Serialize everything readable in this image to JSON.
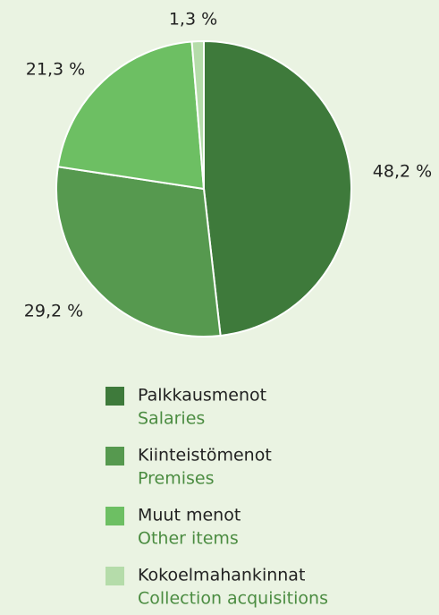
{
  "chart_data": {
    "type": "pie",
    "categories": [
      "Palkkausmenot",
      "Kiinteistömenot",
      "Muut menot",
      "Kokoelmahankinnat"
    ],
    "categories_en": [
      "Salaries",
      "Premises",
      "Other items",
      "Collection acquisitions"
    ],
    "values": [
      48.2,
      29.2,
      21.3,
      1.3
    ],
    "value_labels": [
      "48,2 %",
      "29,2 %",
      "21,3 %",
      "1,3 %"
    ],
    "colors": [
      "#3e7a3b",
      "#56994f",
      "#6dbf63",
      "#b5dcaa"
    ]
  }
}
